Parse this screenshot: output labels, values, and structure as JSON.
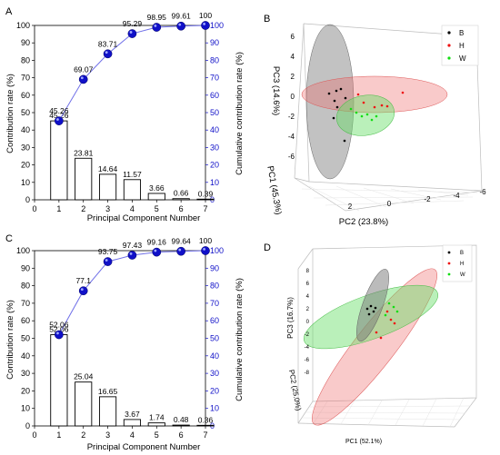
{
  "figure": {
    "panel_labels": [
      "A",
      "B",
      "C",
      "D"
    ]
  },
  "chart_data": [
    {
      "panel": "A",
      "type": "bar",
      "xlabel": "Principal Component Number",
      "ylabel": "Contribution rate (%)",
      "y2label": "Cumulative contribution rate (%)",
      "categories": [
        1,
        2,
        3,
        4,
        5,
        6,
        7
      ],
      "xticks": [
        0,
        1,
        2,
        3,
        4,
        5,
        6,
        7
      ],
      "ylim": [
        0,
        100
      ],
      "yticks": [
        0,
        10,
        20,
        30,
        40,
        50,
        60,
        70,
        80,
        90,
        100
      ],
      "bar_values": [
        45.26,
        23.81,
        14.64,
        11.57,
        3.66,
        0.66,
        0.39
      ],
      "bar_labels": [
        "45.26",
        "23.81",
        "14.64",
        "11.57",
        "3.66",
        "0.66",
        "0.39"
      ],
      "cumulative_values": [
        45.26,
        69.07,
        83.71,
        95.29,
        98.95,
        99.61,
        100
      ],
      "cumulative_labels": [
        "45.26",
        "69.07",
        "83.71",
        "95.29",
        "98.95",
        "99.61",
        "100"
      ],
      "cumulative_color": "#1010c8",
      "line_color": "#7070e8",
      "bar_fill": "#ffffff"
    },
    {
      "panel": "B",
      "type": "scatter",
      "xlabel": "PC2 (23.8%)",
      "ylabel": "PC3 (14.6%)",
      "zlabel": "PC1 (45.3%)",
      "vertical_ticks": [
        "6",
        "4",
        "2",
        "0",
        "-2",
        "-4",
        "-6"
      ],
      "depth_ticks": [
        "2",
        "0",
        "-2",
        "-4",
        "-6"
      ],
      "legend": [
        {
          "label": "B",
          "color": "#000000"
        },
        {
          "label": "H",
          "color": "#ee1111"
        },
        {
          "label": "W",
          "color": "#11dd11"
        }
      ],
      "legend_position": "top-right",
      "ellipse_colors": [
        "#777777",
        "#ee6666",
        "#66dd66"
      ]
    },
    {
      "panel": "C",
      "type": "bar",
      "xlabel": "Principal Component Number",
      "ylabel": "Contribution rate (%)",
      "y2label": "Cumulative contribution rate (%)",
      "categories": [
        1,
        2,
        3,
        4,
        5,
        6,
        7
      ],
      "xticks": [
        0,
        1,
        2,
        3,
        4,
        5,
        6,
        7
      ],
      "ylim": [
        0,
        100
      ],
      "yticks": [
        0,
        10,
        20,
        30,
        40,
        50,
        60,
        70,
        80,
        90,
        100
      ],
      "bar_values": [
        52.06,
        25.04,
        16.65,
        3.67,
        1.74,
        0.48,
        0.36
      ],
      "bar_labels": [
        "52.06",
        "25.04",
        "16.65",
        "3.67",
        "1.74",
        "0.48",
        "0.36"
      ],
      "cumulative_values": [
        52.06,
        77.1,
        93.75,
        97.43,
        99.16,
        99.64,
        100
      ],
      "cumulative_labels": [
        "52.06",
        "77.1",
        "93.75",
        "97.43",
        "99.16",
        "99.64",
        "100"
      ],
      "cumulative_color": "#1010c8",
      "line_color": "#7070e8",
      "bar_fill": "#ffffff"
    },
    {
      "panel": "D",
      "type": "scatter",
      "xlabel": "PC1 (52.1%)",
      "ylabel": "PC3 (16.7%)",
      "zlabel": "PC2 (25.0%)",
      "vertical_ticks": [
        "8",
        "6",
        "4",
        "2",
        "0",
        "-2",
        "-4",
        "-6",
        "-8"
      ],
      "legend": [
        {
          "label": "B",
          "color": "#000000"
        },
        {
          "label": "H",
          "color": "#ee1111"
        },
        {
          "label": "W",
          "color": "#11dd11"
        }
      ],
      "legend_position": "top-right",
      "ellipse_colors": [
        "#777777",
        "#ee6666",
        "#66dd66"
      ]
    }
  ]
}
